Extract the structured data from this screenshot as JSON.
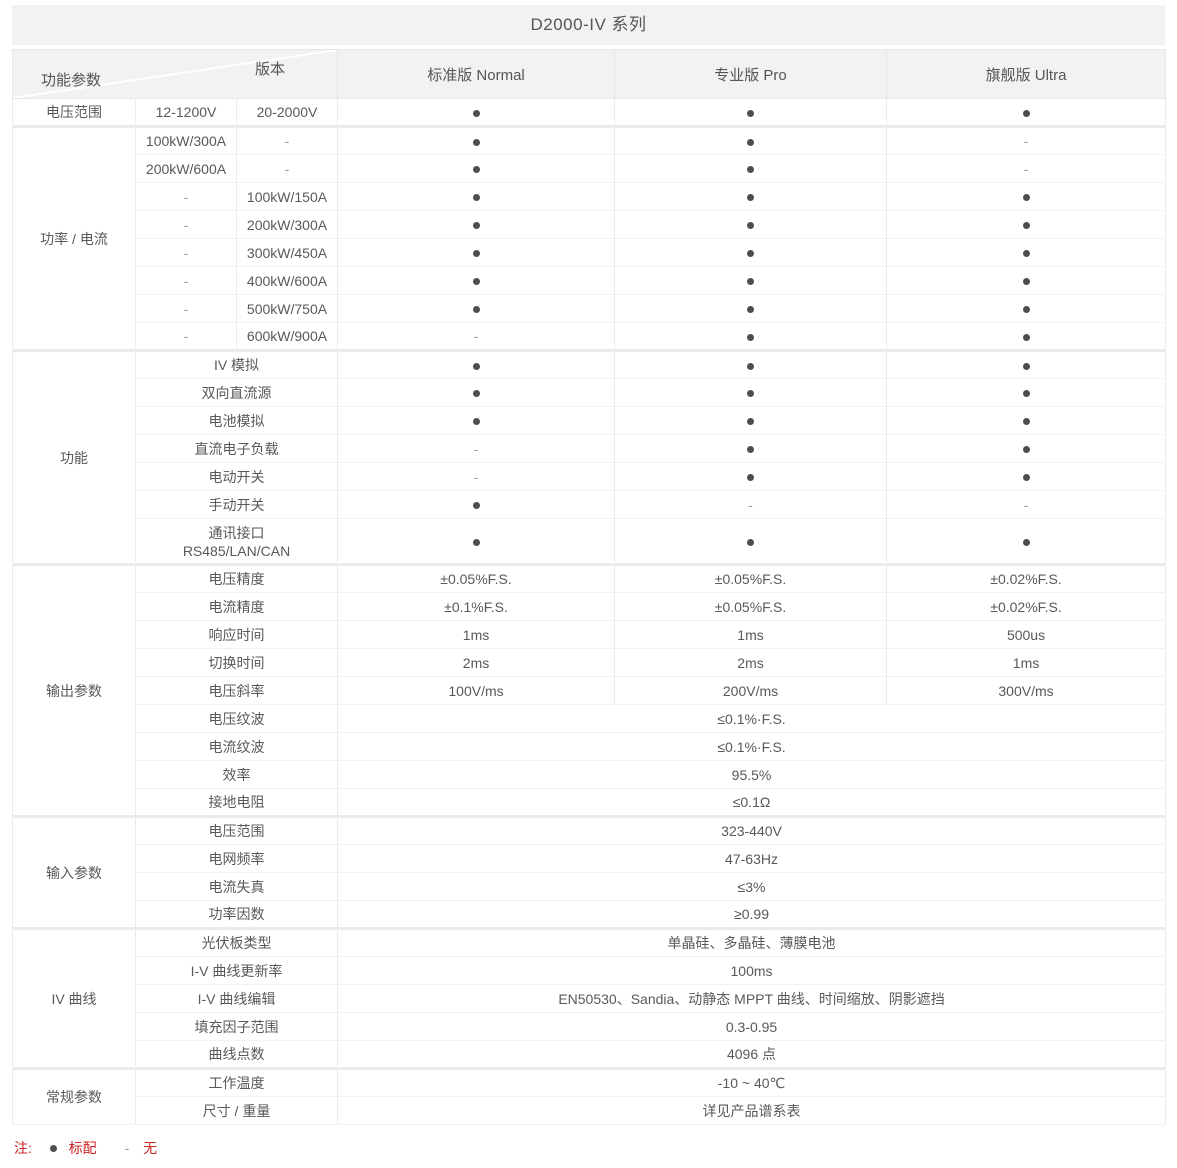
{
  "title": "D2000-IV 系列",
  "header": {
    "corner_top": "版本",
    "corner_bottom": "功能参数",
    "columns": [
      "标准版 Normal",
      "专业版 Pro",
      "旗舰版 Ultra"
    ]
  },
  "colors": {
    "header_bg": "#f2f2f2",
    "note_red": "#cc2222",
    "dot_gray": "#4d4d4d",
    "border_gray": "#ebebeb"
  },
  "sections": [
    {
      "name": "电压范围",
      "rows": [
        {
          "sub": [
            "12-1200V",
            "20-2000V"
          ],
          "values": [
            "dot",
            "dot",
            "dot"
          ]
        }
      ]
    },
    {
      "name": "功率 / 电流",
      "rows": [
        {
          "sub": [
            "100kW/300A",
            "-"
          ],
          "values": [
            "dot",
            "dot",
            "dash"
          ]
        },
        {
          "sub": [
            "200kW/600A",
            "-"
          ],
          "values": [
            "dot",
            "dot",
            "dash"
          ]
        },
        {
          "sub": [
            "-",
            "100kW/150A"
          ],
          "values": [
            "dot",
            "dot",
            "dot"
          ]
        },
        {
          "sub": [
            "-",
            "200kW/300A"
          ],
          "values": [
            "dot",
            "dot",
            "dot"
          ]
        },
        {
          "sub": [
            "-",
            "300kW/450A"
          ],
          "values": [
            "dot",
            "dot",
            "dot"
          ]
        },
        {
          "sub": [
            "-",
            "400kW/600A"
          ],
          "values": [
            "dot",
            "dot",
            "dot"
          ]
        },
        {
          "sub": [
            "-",
            "500kW/750A"
          ],
          "values": [
            "dot",
            "dot",
            "dot"
          ]
        },
        {
          "sub": [
            "-",
            "600kW/900A"
          ],
          "values": [
            "dash",
            "dot",
            "dot"
          ]
        }
      ]
    },
    {
      "name": "功能",
      "rows": [
        {
          "label": "IV 模拟",
          "values": [
            "dot",
            "dot",
            "dot"
          ]
        },
        {
          "label": "双向直流源",
          "values": [
            "dot",
            "dot",
            "dot"
          ]
        },
        {
          "label": "电池模拟",
          "values": [
            "dot",
            "dot",
            "dot"
          ]
        },
        {
          "label": "直流电子负载",
          "values": [
            "dash",
            "dot",
            "dot"
          ]
        },
        {
          "label": "电动开关",
          "values": [
            "dash",
            "dot",
            "dot"
          ]
        },
        {
          "label": "手动开关",
          "values": [
            "dot",
            "dash",
            "dash"
          ]
        },
        {
          "label": "通讯接口\nRS485/LAN/CAN",
          "tall": true,
          "values": [
            "dot",
            "dot",
            "dot"
          ]
        }
      ]
    },
    {
      "name": "输出参数",
      "rows": [
        {
          "label": "电压精度",
          "values": [
            "±0.05%F.S.",
            "±0.05%F.S.",
            "±0.02%F.S."
          ]
        },
        {
          "label": "电流精度",
          "values": [
            "±0.1%F.S.",
            "±0.05%F.S.",
            "±0.02%F.S."
          ]
        },
        {
          "label": "响应时间",
          "values": [
            "1ms",
            "1ms",
            "500us"
          ]
        },
        {
          "label": "切换时间",
          "values": [
            "2ms",
            "2ms",
            "1ms"
          ]
        },
        {
          "label": "电压斜率",
          "values": [
            "100V/ms",
            "200V/ms",
            "300V/ms"
          ]
        },
        {
          "label": "电压纹波",
          "merged": "≤0.1%·F.S."
        },
        {
          "label": "电流纹波",
          "merged": "≤0.1%·F.S."
        },
        {
          "label": "效率",
          "merged": "95.5%"
        },
        {
          "label": "接地电阻",
          "merged": "≤0.1Ω"
        }
      ]
    },
    {
      "name": "输入参数",
      "rows": [
        {
          "label": "电压范围",
          "merged": "323-440V"
        },
        {
          "label": "电网频率",
          "merged": "47-63Hz"
        },
        {
          "label": "电流失真",
          "merged": "≤3%"
        },
        {
          "label": "功率因数",
          "merged": "≥0.99"
        }
      ]
    },
    {
      "name": "IV 曲线",
      "rows": [
        {
          "label": "光伏板类型",
          "merged": "单晶硅、多晶硅、薄膜电池"
        },
        {
          "label": "I-V 曲线更新率",
          "merged": "100ms"
        },
        {
          "label": "I-V 曲线编辑",
          "merged": "EN50530、Sandia、动静态 MPPT 曲线、时间缩放、阴影遮挡"
        },
        {
          "label": "填充因子范围",
          "merged": "0.3-0.95"
        },
        {
          "label": "曲线点数",
          "merged": "4096 点"
        }
      ]
    },
    {
      "name": "常规参数",
      "rows": [
        {
          "label": "工作温度",
          "merged": "-10 ~ 40℃"
        },
        {
          "label": "尺寸 / 重量",
          "merged": "详见产品谱系表"
        }
      ]
    }
  ],
  "legend": {
    "prefix": "注:",
    "dot_symbol": "●",
    "dot_label": "标配",
    "dash_symbol": "-",
    "dash_label": "无"
  }
}
